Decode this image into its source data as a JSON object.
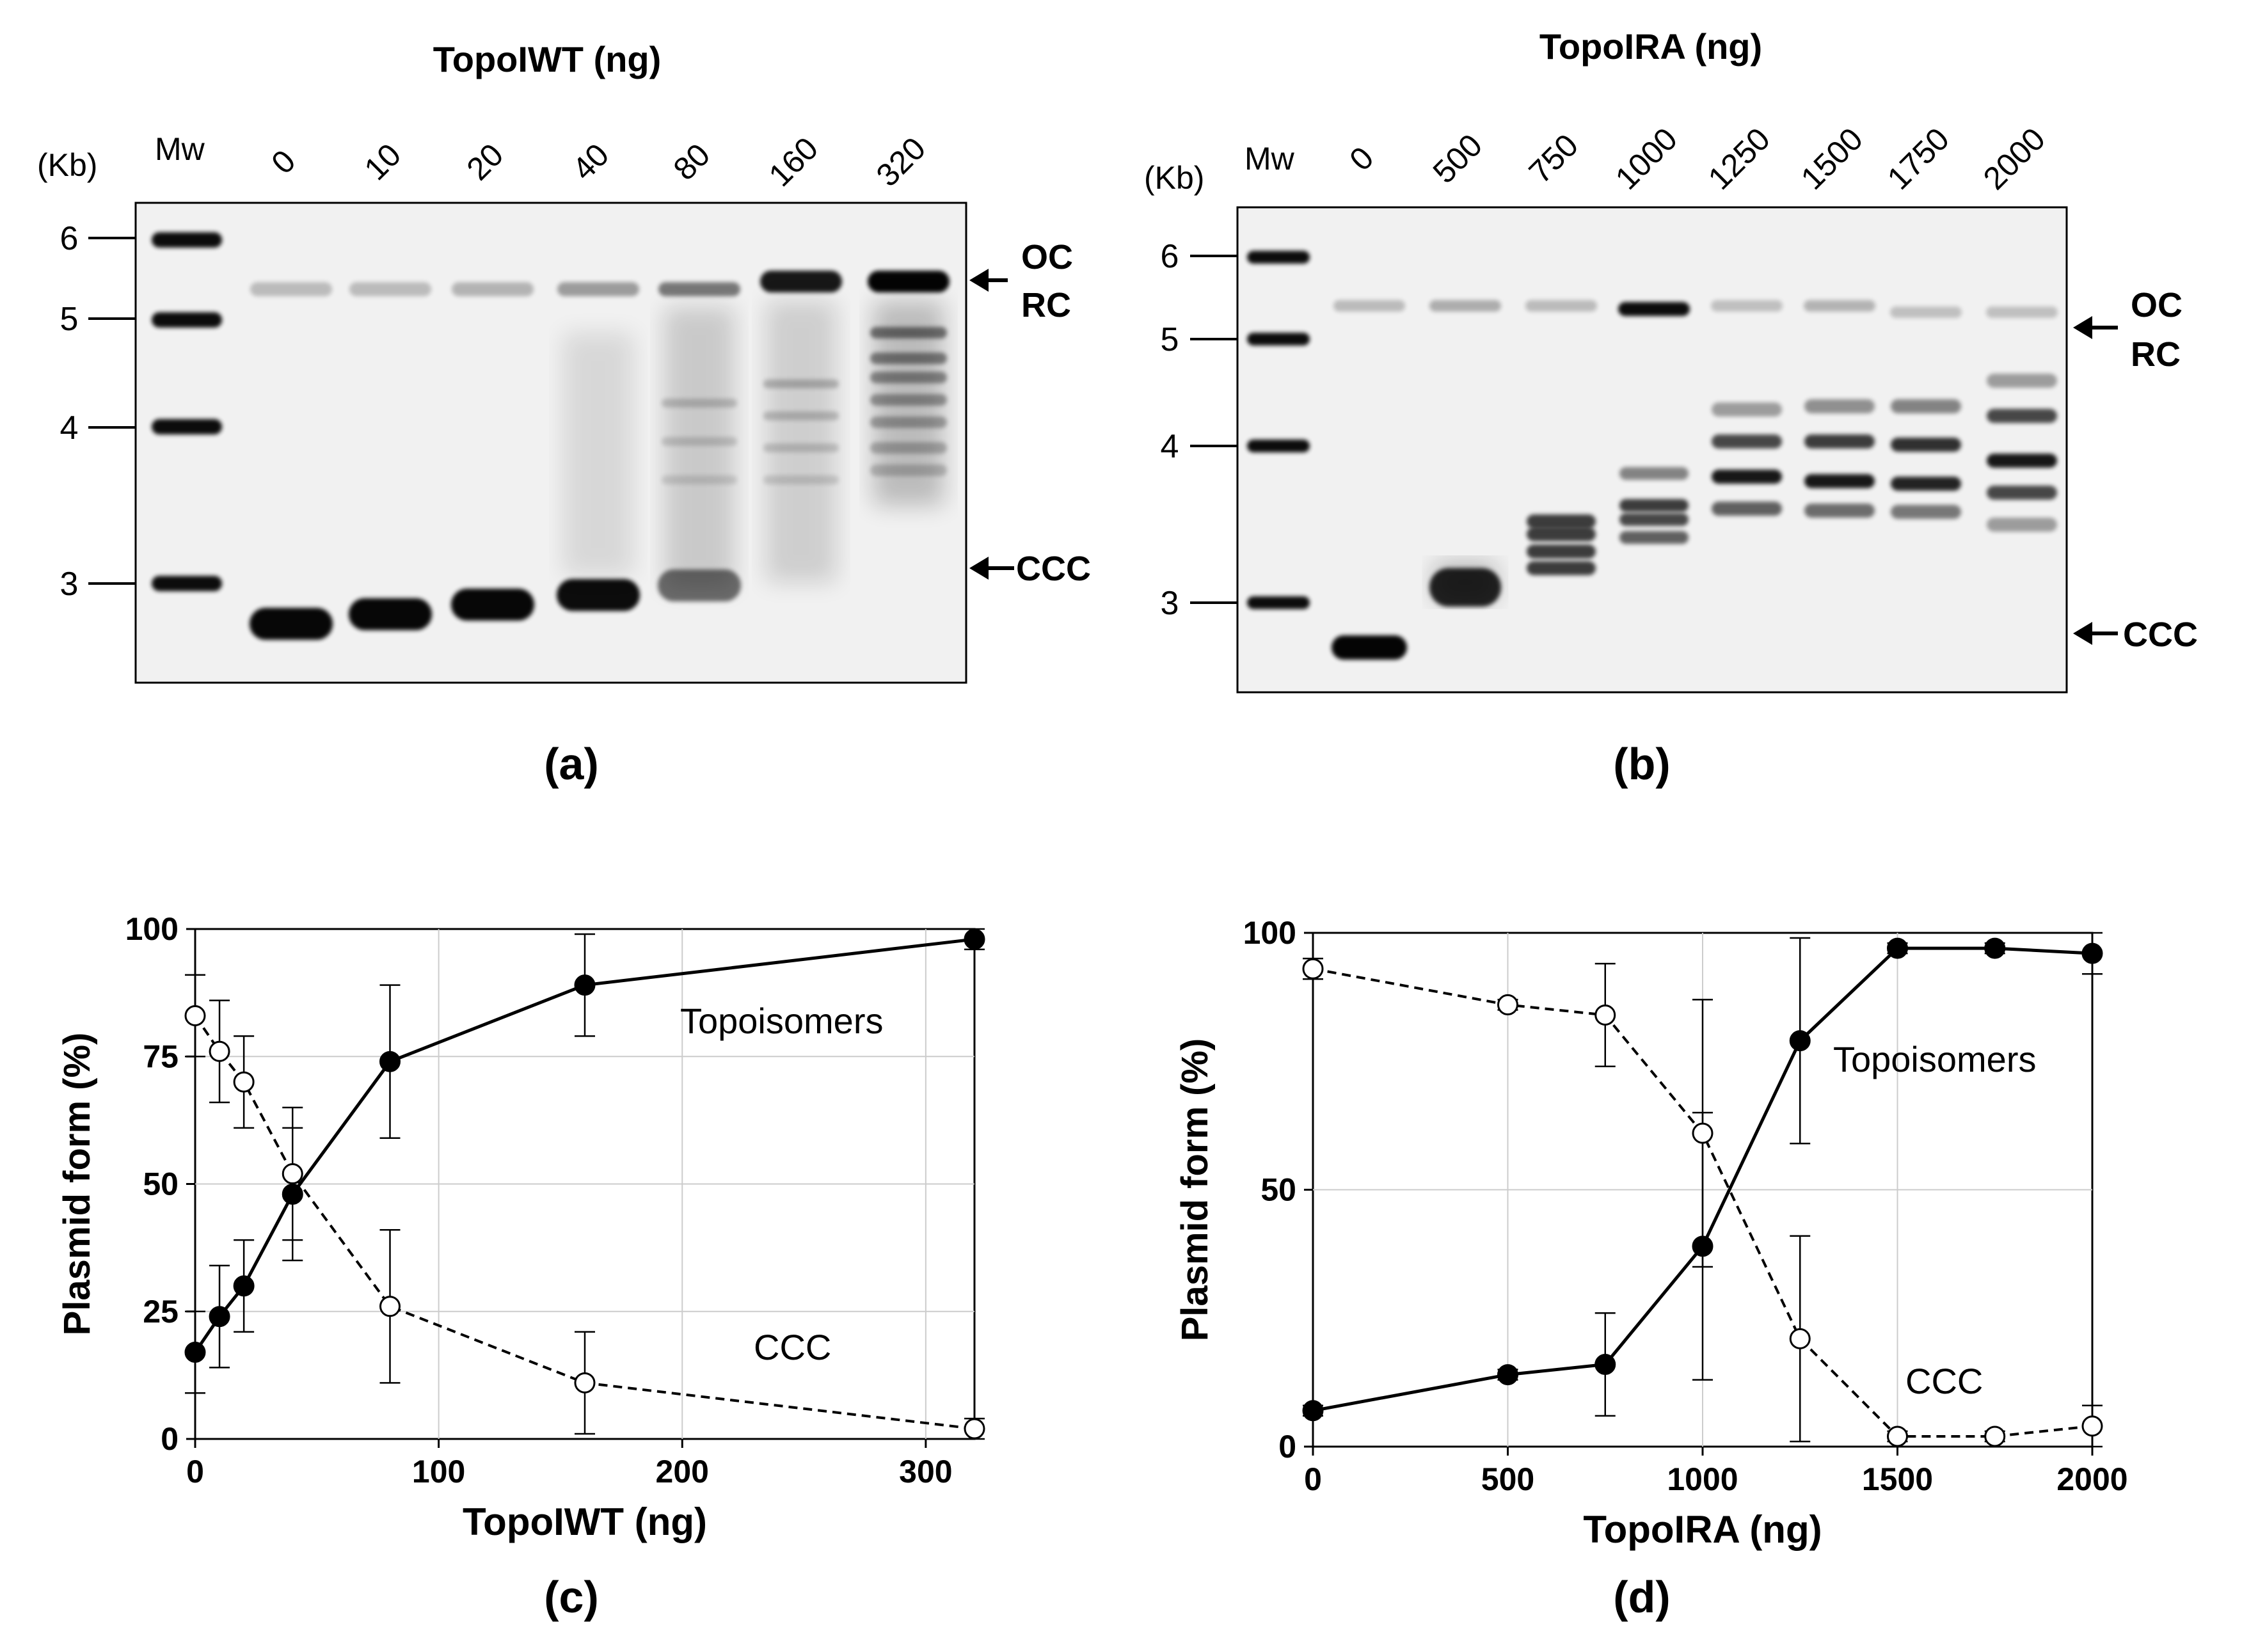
{
  "gel_a": {
    "title": "TopoIWT (ng)",
    "unit_label": "(Kb)",
    "mw_label": "Mw",
    "lane_labels": [
      "0",
      "10",
      "20",
      "40",
      "80",
      "160",
      "320"
    ],
    "size_ticks": [
      "6",
      "5",
      "4",
      "3"
    ],
    "band_labels": {
      "oc": "OC",
      "rc": "RC",
      "ccc": "CCC"
    },
    "panel_label": "(a)"
  },
  "gel_b": {
    "title": "TopoIRA (ng)",
    "unit_label": "(Kb)",
    "mw_label": "Mw",
    "lane_labels": [
      "0",
      "500",
      "750",
      "1000",
      "1250",
      "1500",
      "1750",
      "2000"
    ],
    "size_ticks": [
      "6",
      "5",
      "4",
      "3"
    ],
    "band_labels": {
      "oc": "OC",
      "rc": "RC",
      "ccc": "CCC"
    },
    "panel_label": "(b)"
  },
  "chart_data": [
    {
      "type": "line",
      "panel_label": "(c)",
      "xlabel": "TopoIWT (ng)",
      "ylabel": "Plasmid form (%)",
      "xlim": [
        0,
        320
      ],
      "ylim": [
        0,
        100
      ],
      "xticks": [
        0,
        100,
        200,
        300
      ],
      "yticks": [
        0,
        25,
        50,
        75,
        100
      ],
      "grid": true,
      "series": [
        {
          "name": "Topoisomers",
          "marker": "filled",
          "dash": false,
          "x": [
            0,
            10,
            20,
            40,
            80,
            160,
            320
          ],
          "y": [
            17,
            24,
            30,
            48,
            74,
            89,
            98
          ],
          "err": [
            8,
            10,
            9,
            13,
            15,
            10,
            2
          ]
        },
        {
          "name": "CCC",
          "marker": "open",
          "dash": true,
          "x": [
            0,
            10,
            20,
            40,
            80,
            160,
            320
          ],
          "y": [
            83,
            76,
            70,
            52,
            26,
            11,
            2
          ],
          "err": [
            8,
            10,
            9,
            13,
            15,
            10,
            2
          ]
        }
      ]
    },
    {
      "type": "line",
      "panel_label": "(d)",
      "xlabel": "TopoIRA (ng)",
      "ylabel": "Plasmid form (%)",
      "xlim": [
        0,
        2000
      ],
      "ylim": [
        0,
        100
      ],
      "xticks": [
        0,
        500,
        1000,
        1500,
        2000
      ],
      "yticks": [
        0,
        50,
        100
      ],
      "grid": true,
      "series": [
        {
          "name": "Topoisomers",
          "marker": "filled",
          "dash": false,
          "x": [
            0,
            500,
            750,
            1000,
            1250,
            1500,
            1750,
            2000
          ],
          "y": [
            7,
            14,
            16,
            39,
            79,
            97,
            97,
            96
          ],
          "err": [
            1,
            1,
            10,
            26,
            20,
            1,
            1,
            4
          ]
        },
        {
          "name": "CCC",
          "marker": "open",
          "dash": true,
          "x": [
            0,
            500,
            750,
            1000,
            1250,
            1500,
            1750,
            2000
          ],
          "y": [
            93,
            86,
            84,
            61,
            21,
            2,
            2,
            4
          ],
          "err": [
            2,
            1,
            10,
            26,
            20,
            1,
            1,
            4
          ]
        }
      ]
    }
  ]
}
